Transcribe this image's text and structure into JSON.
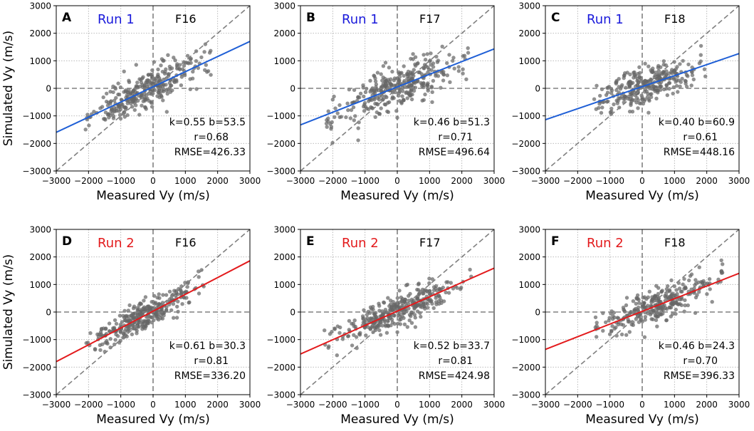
{
  "chart_data": [
    {
      "panel": "A",
      "run": "Run 1",
      "dataset": "F16",
      "type": "scatter",
      "xlabel": "Measured Vy (m/s)",
      "ylabel": "Simulated Vy (m/s)",
      "xlim": [
        -3000,
        3000
      ],
      "ylim": [
        -3000,
        3000
      ],
      "xticks": [
        "−3000",
        "−2000",
        "−1000",
        "0",
        "1000",
        "2000",
        "3000"
      ],
      "yticks": [
        "−3000",
        "−2000",
        "−1000",
        "0",
        "1000",
        "2000",
        "3000"
      ],
      "fit": {
        "k": 0.55,
        "b": 53.5
      },
      "stats": {
        "kb": "k=0.55 b=53.5",
        "r": "r=0.68",
        "rmse": "RMSE=426.33"
      },
      "line_color": "#1f5fd6",
      "run_color": "#1a1adb",
      "cloud": {
        "x_range": [
          -2100,
          1800
        ],
        "spread": 360,
        "n": 320,
        "seed": 11
      }
    },
    {
      "panel": "B",
      "run": "Run 1",
      "dataset": "F17",
      "type": "scatter",
      "xlabel": "Measured Vy (m/s)",
      "ylabel": "",
      "xlim": [
        -3000,
        3000
      ],
      "ylim": [
        -3000,
        3000
      ],
      "xticks": [
        "−3000",
        "−2000",
        "−1000",
        "0",
        "1000",
        "2000",
        "3000"
      ],
      "yticks": [
        "−3000",
        "−2000",
        "−1000",
        "0",
        "1000",
        "2000",
        "3000"
      ],
      "fit": {
        "k": 0.46,
        "b": 51.3
      },
      "stats": {
        "kb": "k=0.46 b=51.3",
        "r": "r=0.71",
        "rmse": "RMSE=496.64"
      },
      "line_color": "#1f5fd6",
      "run_color": "#1a1adb",
      "cloud": {
        "x_range": [
          -2200,
          2200
        ],
        "spread": 380,
        "n": 340,
        "seed": 23
      }
    },
    {
      "panel": "C",
      "run": "Run 1",
      "dataset": "F18",
      "type": "scatter",
      "xlabel": "Measured Vy (m/s)",
      "ylabel": "",
      "xlim": [
        -3000,
        3000
      ],
      "ylim": [
        -3000,
        3000
      ],
      "xticks": [
        "−3000",
        "−2000",
        "−1000",
        "0",
        "1000",
        "2000",
        "3000"
      ],
      "yticks": [
        "−3000",
        "−2000",
        "−1000",
        "0",
        "1000",
        "2000",
        "3000"
      ],
      "fit": {
        "k": 0.4,
        "b": 60.9
      },
      "stats": {
        "kb": "k=0.40 b=60.9",
        "r": "r=0.61",
        "rmse": "RMSE=448.16"
      },
      "line_color": "#1f5fd6",
      "run_color": "#1a1adb",
      "cloud": {
        "x_range": [
          -1500,
          2000
        ],
        "spread": 330,
        "n": 300,
        "seed": 37
      }
    },
    {
      "panel": "D",
      "run": "Run 2",
      "dataset": "F16",
      "type": "scatter",
      "xlabel": "Measured Vy (m/s)",
      "ylabel": "Simulated Vy (m/s)",
      "xlim": [
        -3000,
        3000
      ],
      "ylim": [
        -3000,
        3000
      ],
      "xticks": [
        "−3000",
        "−2000",
        "−1000",
        "0",
        "1000",
        "2000",
        "3000"
      ],
      "yticks": [
        "−3000",
        "−2000",
        "−1000",
        "0",
        "1000",
        "2000",
        "3000"
      ],
      "fit": {
        "k": 0.61,
        "b": 30.3
      },
      "stats": {
        "kb": "k=0.61 b=30.3",
        "r": "r=0.81",
        "rmse": "RMSE=336.20"
      },
      "line_color": "#e31a1c",
      "run_color": "#e31a1c",
      "cloud": {
        "x_range": [
          -2100,
          1600
        ],
        "spread": 270,
        "n": 320,
        "seed": 41
      }
    },
    {
      "panel": "E",
      "run": "Run 2",
      "dataset": "F17",
      "type": "scatter",
      "xlabel": "Measured Vy (m/s)",
      "ylabel": "",
      "xlim": [
        -3000,
        3000
      ],
      "ylim": [
        -3000,
        3000
      ],
      "xticks": [
        "−3000",
        "−2000",
        "−1000",
        "0",
        "1000",
        "2000",
        "3000"
      ],
      "yticks": [
        "−3000",
        "−2000",
        "−1000",
        "0",
        "1000",
        "2000",
        "3000"
      ],
      "fit": {
        "k": 0.52,
        "b": 33.7
      },
      "stats": {
        "kb": "k=0.52 b=33.7",
        "r": "r=0.81",
        "rmse": "RMSE=424.98"
      },
      "line_color": "#e31a1c",
      "run_color": "#e31a1c",
      "cloud": {
        "x_range": [
          -2300,
          2300
        ],
        "spread": 290,
        "n": 340,
        "seed": 53
      }
    },
    {
      "panel": "F",
      "run": "Run 2",
      "dataset": "F18",
      "type": "scatter",
      "xlabel": "Measured Vy (m/s)",
      "ylabel": "",
      "xlim": [
        -3000,
        3000
      ],
      "ylim": [
        -3000,
        3000
      ],
      "xticks": [
        "−3000",
        "−2000",
        "−1000",
        "0",
        "1000",
        "2000",
        "3000"
      ],
      "yticks": [
        "−3000",
        "−2000",
        "−1000",
        "0",
        "1000",
        "2000",
        "3000"
      ],
      "fit": {
        "k": 0.46,
        "b": 24.3
      },
      "stats": {
        "kb": "k=0.46 b=24.3",
        "r": "r=0.70",
        "rmse": "RMSE=396.33"
      },
      "line_color": "#e31a1c",
      "run_color": "#e31a1c",
      "cloud": {
        "x_range": [
          -1500,
          2500
        ],
        "spread": 280,
        "n": 300,
        "seed": 67
      }
    }
  ],
  "colors": {
    "points": "#666666",
    "reference_lines": "#808080",
    "grid": "#b0b0b0"
  }
}
